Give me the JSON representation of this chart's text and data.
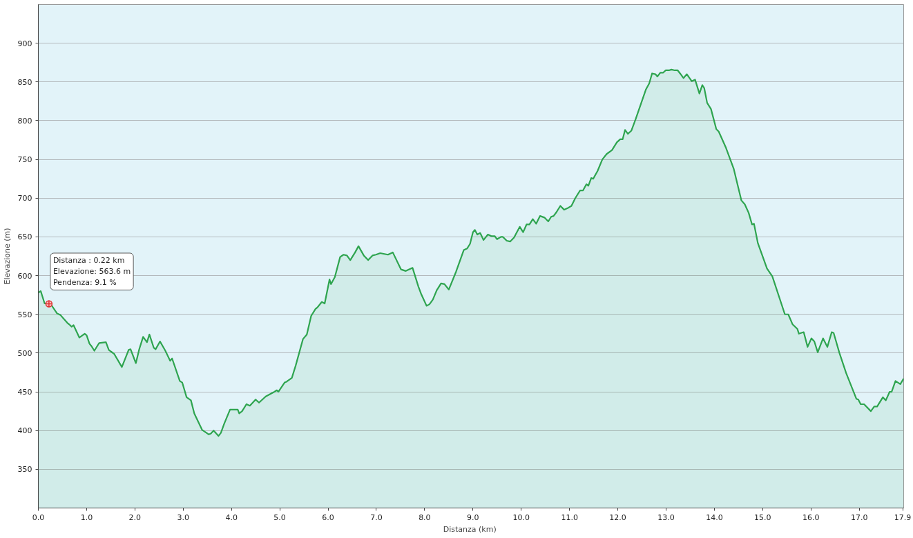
{
  "chart_data": {
    "type": "area",
    "xlabel": "Distanza  (km)",
    "ylabel": "Elevazione (m)",
    "x": [
      0,
      0.05,
      0.13,
      0.22,
      0.27,
      0.39,
      0.46,
      0.6,
      0.64,
      0.69,
      0.73,
      0.85,
      0.96,
      1.0,
      1.06,
      1.1,
      1.16,
      1.26,
      1.4,
      1.46,
      1.57,
      1.73,
      1.87,
      1.91,
      2.02,
      2.09,
      2.17,
      2.25,
      2.3,
      2.39,
      2.43,
      2.52,
      2.63,
      2.73,
      2.77,
      2.93,
      2.98,
      3.07,
      3.16,
      3.23,
      3.39,
      3.53,
      3.57,
      3.63,
      3.73,
      3.78,
      3.85,
      3.97,
      4.13,
      4.16,
      4.22,
      4.31,
      4.38,
      4.5,
      4.57,
      4.71,
      4.89,
      4.94,
      4.97,
      5.1,
      5.14,
      5.25,
      5.33,
      5.48,
      5.56,
      5.65,
      5.74,
      5.78,
      5.87,
      5.93,
      6.03,
      6.06,
      6.14,
      6.25,
      6.32,
      6.39,
      6.46,
      6.56,
      6.63,
      6.74,
      6.83,
      6.92,
      6.99,
      7.08,
      7.24,
      7.34,
      7.51,
      7.61,
      7.75,
      7.87,
      7.93,
      8.04,
      8.1,
      8.17,
      8.25,
      8.34,
      8.41,
      8.5,
      8.65,
      8.81,
      8.88,
      8.94,
      9.0,
      9.04,
      9.09,
      9.15,
      9.22,
      9.31,
      9.38,
      9.45,
      9.5,
      9.58,
      9.62,
      9.7,
      9.77,
      9.85,
      9.97,
      10.04,
      10.11,
      10.17,
      10.24,
      10.31,
      10.39,
      10.48,
      10.56,
      10.62,
      10.67,
      10.73,
      10.81,
      10.89,
      10.96,
      11.04,
      11.12,
      11.22,
      11.28,
      11.35,
      11.39,
      11.45,
      11.49,
      11.58,
      11.68,
      11.77,
      11.88,
      11.98,
      12.05,
      12.1,
      12.15,
      12.21,
      12.28,
      12.37,
      12.58,
      12.65,
      12.71,
      12.78,
      12.82,
      12.88,
      12.94,
      12.99,
      13.06,
      13.11,
      13.18,
      13.24,
      13.29,
      13.36,
      13.43,
      13.53,
      13.6,
      13.69,
      13.75,
      13.79,
      13.85,
      13.93,
      14.04,
      14.09,
      14.24,
      14.4,
      14.56,
      14.63,
      14.71,
      14.78,
      14.82,
      14.9,
      15.09,
      15.2,
      15.46,
      15.53,
      15.62,
      15.72,
      15.75,
      15.85,
      15.93,
      16.01,
      16.07,
      16.14,
      16.25,
      16.34,
      16.43,
      16.47,
      16.59,
      16.73,
      16.94,
      16.98,
      17.03,
      17.1,
      17.24,
      17.31,
      17.37,
      17.49,
      17.55,
      17.63,
      17.67,
      17.75,
      17.85,
      17.92
    ],
    "series": [
      {
        "color": "#2ea44f",
        "values": [
          578,
          580,
          564,
          564,
          562,
          551,
          549,
          539,
          537,
          534,
          536,
          520,
          525,
          523,
          512,
          509,
          503,
          513,
          514,
          504,
          499,
          482,
          504,
          505,
          487,
          505,
          521,
          514,
          524,
          507,
          505,
          515,
          503,
          490,
          493,
          464,
          462,
          443,
          439,
          422,
          401,
          395,
          396,
          400,
          393,
          397,
          409,
          427,
          427,
          422,
          425,
          434,
          432,
          440,
          436,
          444,
          450,
          452,
          450,
          462,
          463,
          468,
          484,
          518,
          524,
          548,
          557,
          559,
          566,
          564,
          595,
          589,
          598,
          624,
          627,
          626,
          620,
          630,
          638,
          626,
          620,
          626,
          627,
          629,
          627,
          630,
          608,
          606,
          610,
          586,
          576,
          561,
          563,
          569,
          581,
          590,
          589,
          582,
          605,
          633,
          635,
          641,
          656,
          659,
          653,
          655,
          646,
          653,
          651,
          651,
          647,
          650,
          650,
          645,
          644,
          649,
          663,
          656,
          666,
          666,
          673,
          667,
          677,
          675,
          670,
          676,
          677,
          682,
          690,
          685,
          687,
          690,
          700,
          710,
          710,
          718,
          716,
          726,
          725,
          735,
          750,
          757,
          762,
          772,
          776,
          776,
          788,
          783,
          787,
          802,
          840,
          848,
          861,
          860,
          857,
          862,
          862,
          865,
          865,
          866,
          865,
          865,
          861,
          855,
          860,
          851,
          853,
          835,
          846,
          842,
          823,
          815,
          789,
          786,
          765,
          738,
          697,
          692,
          681,
          666,
          667,
          642,
          609,
          599,
          550,
          550,
          537,
          531,
          525,
          527,
          508,
          519,
          515,
          501,
          519,
          508,
          527,
          526,
          500,
          474,
          441,
          440,
          434,
          434,
          425,
          431,
          431,
          443,
          439,
          450,
          450,
          464,
          460,
          467
        ]
      }
    ],
    "xlim": [
      0,
      17.92
    ],
    "ylim": [
      300,
      950
    ],
    "xticks": [
      {
        "value": 0,
        "label": "0.0"
      },
      {
        "value": 1,
        "label": "1.0"
      },
      {
        "value": 2,
        "label": "2.0"
      },
      {
        "value": 3,
        "label": "3.0"
      },
      {
        "value": 4,
        "label": "4.0"
      },
      {
        "value": 5,
        "label": "5.0"
      },
      {
        "value": 6,
        "label": "6.0"
      },
      {
        "value": 7,
        "label": "7.0"
      },
      {
        "value": 8,
        "label": "8.0"
      },
      {
        "value": 9,
        "label": "9.0"
      },
      {
        "value": 10,
        "label": "10.0"
      },
      {
        "value": 11,
        "label": "11.0"
      },
      {
        "value": 12,
        "label": "12.0"
      },
      {
        "value": 13,
        "label": "13.0"
      },
      {
        "value": 14,
        "label": "14.0"
      },
      {
        "value": 15,
        "label": "15.0"
      },
      {
        "value": 16,
        "label": "16.0"
      },
      {
        "value": 17,
        "label": "17.0"
      },
      17.9
    ],
    "yticks": [
      350,
      400,
      450,
      500,
      550,
      600,
      650,
      700,
      750,
      800,
      850,
      900
    ],
    "grid": "y",
    "annotations": [
      {
        "text": "Distanza  : 0.22 km\nElevazione: 563.6 m\nPendenza: 9.1 %",
        "x": 0.22,
        "y": 563.6
      }
    ]
  }
}
